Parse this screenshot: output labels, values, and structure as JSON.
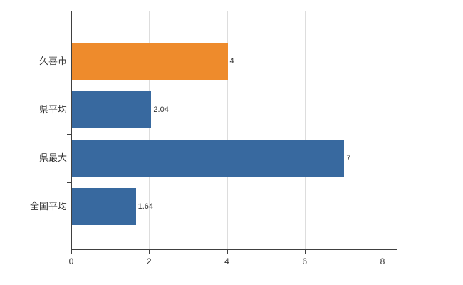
{
  "chart_data": {
    "type": "bar",
    "orientation": "horizontal",
    "title": "",
    "xlabel": "",
    "ylabel": "",
    "categories": [
      "久喜市",
      "県平均",
      "県最大",
      "全国平均"
    ],
    "values": [
      4,
      2.04,
      7,
      1.64
    ],
    "value_labels": [
      "4",
      "2.04",
      "7",
      "1.64"
    ],
    "bar_colors": [
      "#ee8b2c",
      "#38699f",
      "#38699f",
      "#38699f"
    ],
    "xlim": [
      0,
      8
    ],
    "x_ticks": [
      0,
      2,
      4,
      6,
      8
    ],
    "grid": true,
    "legend": false
  },
  "colors": {
    "axis": "#404040",
    "grid": "#dddddd",
    "text": "#333333",
    "background": "#ffffff"
  }
}
